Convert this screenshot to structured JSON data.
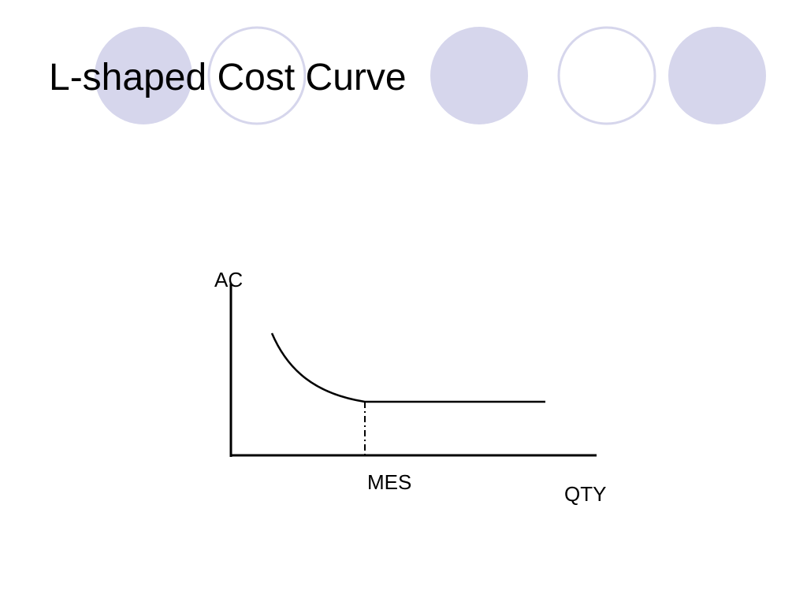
{
  "header": {
    "title": "L-shaped Cost Curve"
  },
  "diagram": {
    "y_axis_label": "AC",
    "x_axis_label": "QTY",
    "point_label": "MES"
  }
}
